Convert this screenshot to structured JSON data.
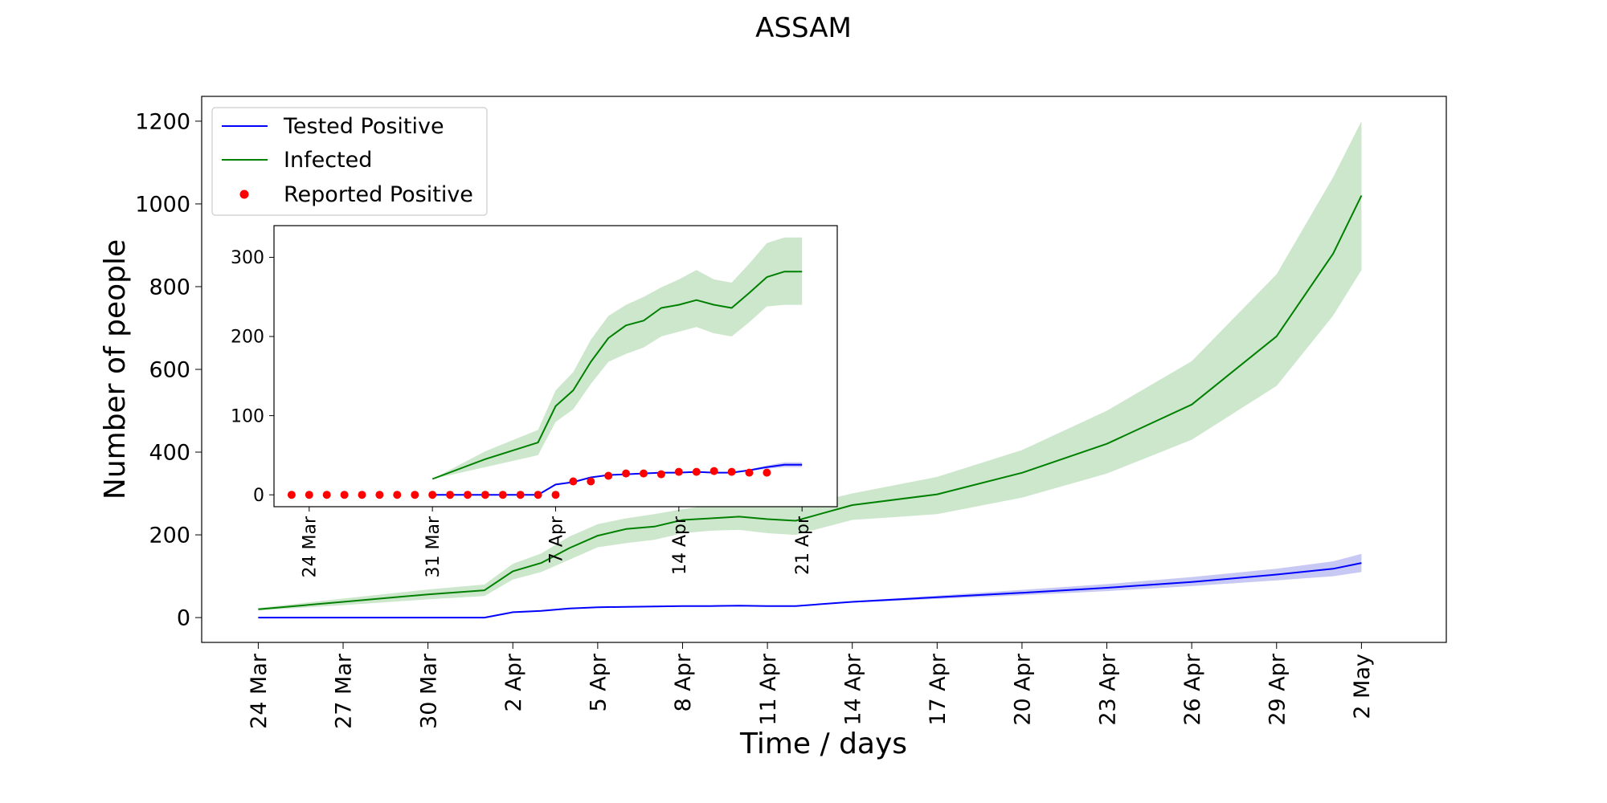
{
  "chart_data": [
    {
      "type": "line",
      "title": "ASSAM",
      "xlabel": "Time / days",
      "ylabel": "Number of people",
      "x_ticks": [
        "24 Mar",
        "27 Mar",
        "30 Mar",
        "2 Apr",
        "5 Apr",
        "8 Apr",
        "11 Apr",
        "14 Apr",
        "17 Apr",
        "20 Apr",
        "23 Apr",
        "26 Apr",
        "29 Apr",
        "2 May"
      ],
      "xlim": [
        "2020-03-22",
        "2020-05-05"
      ],
      "y_ticks": [
        0,
        200,
        400,
        600,
        800,
        1000,
        1200
      ],
      "ylim": [
        -60,
        1260
      ],
      "grid": false,
      "legend_position": "top-left",
      "x": [
        "2020-03-24",
        "2020-03-27",
        "2020-03-30",
        "2020-04-01",
        "2020-04-02",
        "2020-04-03",
        "2020-04-04",
        "2020-04-05",
        "2020-04-06",
        "2020-04-07",
        "2020-04-08",
        "2020-04-09",
        "2020-04-10",
        "2020-04-11",
        "2020-04-12",
        "2020-04-14",
        "2020-04-17",
        "2020-04-20",
        "2020-04-23",
        "2020-04-26",
        "2020-04-29",
        "2020-05-01",
        "2020-05-02"
      ],
      "series": [
        {
          "name": "Infected",
          "color": "#008000",
          "band_color": "#cde7cd",
          "values": [
            20,
            38,
            56,
            66,
            112,
            132,
            168,
            198,
            214,
            220,
            236,
            240,
            244,
            238,
            234,
            272,
            298,
            350,
            420,
            515,
            680,
            880,
            1020
          ],
          "lower": [
            17,
            30,
            44,
            52,
            92,
            110,
            140,
            170,
            180,
            188,
            204,
            210,
            212,
            204,
            200,
            236,
            250,
            290,
            348,
            430,
            560,
            730,
            840
          ],
          "upper": [
            23,
            46,
            68,
            80,
            130,
            155,
            196,
            226,
            240,
            250,
            262,
            272,
            284,
            272,
            268,
            300,
            340,
            405,
            500,
            620,
            830,
            1065,
            1200
          ]
        },
        {
          "name": "Tested Positive",
          "color": "#0000ff",
          "band_color": "#c8c8f5",
          "values": [
            0,
            0,
            0,
            0,
            13,
            16,
            22,
            25,
            26,
            27,
            28,
            28,
            29,
            28,
            28,
            38,
            49,
            60,
            72,
            86,
            104,
            118,
            132
          ],
          "lower": [
            0,
            0,
            0,
            0,
            13,
            16,
            22,
            25,
            26,
            27,
            28,
            28,
            29,
            28,
            28,
            36,
            45,
            54,
            64,
            76,
            90,
            100,
            110
          ],
          "upper": [
            0,
            0,
            0,
            0,
            13,
            16,
            22,
            25,
            26,
            27,
            28,
            28,
            29,
            28,
            28,
            40,
            53,
            67,
            81,
            98,
            118,
            136,
            154
          ]
        }
      ],
      "legend": [
        {
          "label": "Tested Positive",
          "marker": "line",
          "color": "#0000ff"
        },
        {
          "label": "Infected",
          "marker": "line",
          "color": "#008000"
        },
        {
          "label": "Reported Positive",
          "marker": "dot",
          "color": "#ff0000"
        }
      ]
    },
    {
      "type": "line",
      "role": "inset",
      "x_ticks": [
        "24 Mar",
        "31 Mar",
        "7 Apr",
        "14 Apr",
        "21 Apr"
      ],
      "xlim": [
        "2020-03-22",
        "2020-04-23"
      ],
      "y_ticks": [
        0,
        100,
        200,
        300
      ],
      "ylim": [
        -15,
        340
      ],
      "x": [
        "2020-03-31",
        "2020-04-03",
        "2020-04-06",
        "2020-04-07",
        "2020-04-08",
        "2020-04-09",
        "2020-04-10",
        "2020-04-11",
        "2020-04-12",
        "2020-04-13",
        "2020-04-14",
        "2020-04-15",
        "2020-04-16",
        "2020-04-17",
        "2020-04-18",
        "2020-04-19",
        "2020-04-20",
        "2020-04-21"
      ],
      "series": [
        {
          "name": "Infected",
          "color": "#008000",
          "band_color": "#cde7cd",
          "values": [
            20,
            45,
            66,
            112,
            132,
            168,
            198,
            214,
            220,
            236,
            240,
            246,
            240,
            236,
            255,
            275,
            282,
            282
          ],
          "lower": [
            20,
            35,
            50,
            92,
            108,
            140,
            168,
            178,
            186,
            200,
            206,
            212,
            204,
            200,
            218,
            238,
            240,
            240
          ],
          "upper": [
            20,
            55,
            82,
            132,
            155,
            196,
            226,
            240,
            250,
            262,
            272,
            284,
            272,
            268,
            292,
            318,
            325,
            325
          ]
        },
        {
          "name": "Tested Positive",
          "color": "#0000ff",
          "band_color": "#c8c8f5",
          "values": [
            0,
            0,
            0,
            13,
            16,
            22,
            25,
            26,
            27,
            28,
            28,
            29,
            28,
            28,
            31,
            35,
            38,
            38
          ],
          "lower": [
            0,
            0,
            0,
            13,
            16,
            22,
            25,
            26,
            27,
            28,
            28,
            29,
            28,
            28,
            30,
            33,
            35,
            35
          ],
          "upper": [
            0,
            0,
            0,
            13,
            16,
            22,
            25,
            26,
            27,
            28,
            28,
            29,
            28,
            28,
            32,
            37,
            41,
            41
          ]
        },
        {
          "name": "Reported Positive",
          "type": "scatter",
          "color": "#ff0000",
          "x": [
            "2020-03-23",
            "2020-03-24",
            "2020-03-25",
            "2020-03-26",
            "2020-03-27",
            "2020-03-28",
            "2020-03-29",
            "2020-03-30",
            "2020-03-31",
            "2020-04-01",
            "2020-04-02",
            "2020-04-03",
            "2020-04-04",
            "2020-04-05",
            "2020-04-06",
            "2020-04-07",
            "2020-04-08",
            "2020-04-09",
            "2020-04-10",
            "2020-04-11",
            "2020-04-12",
            "2020-04-13",
            "2020-04-14",
            "2020-04-15",
            "2020-04-16",
            "2020-04-17",
            "2020-04-18",
            "2020-04-19"
          ],
          "values": [
            0,
            0,
            0,
            0,
            0,
            0,
            0,
            0,
            0,
            0,
            0,
            0,
            0,
            0,
            0,
            0,
            17,
            17,
            24,
            27,
            27,
            26,
            29,
            29,
            30,
            29,
            28,
            28
          ]
        }
      ]
    }
  ]
}
